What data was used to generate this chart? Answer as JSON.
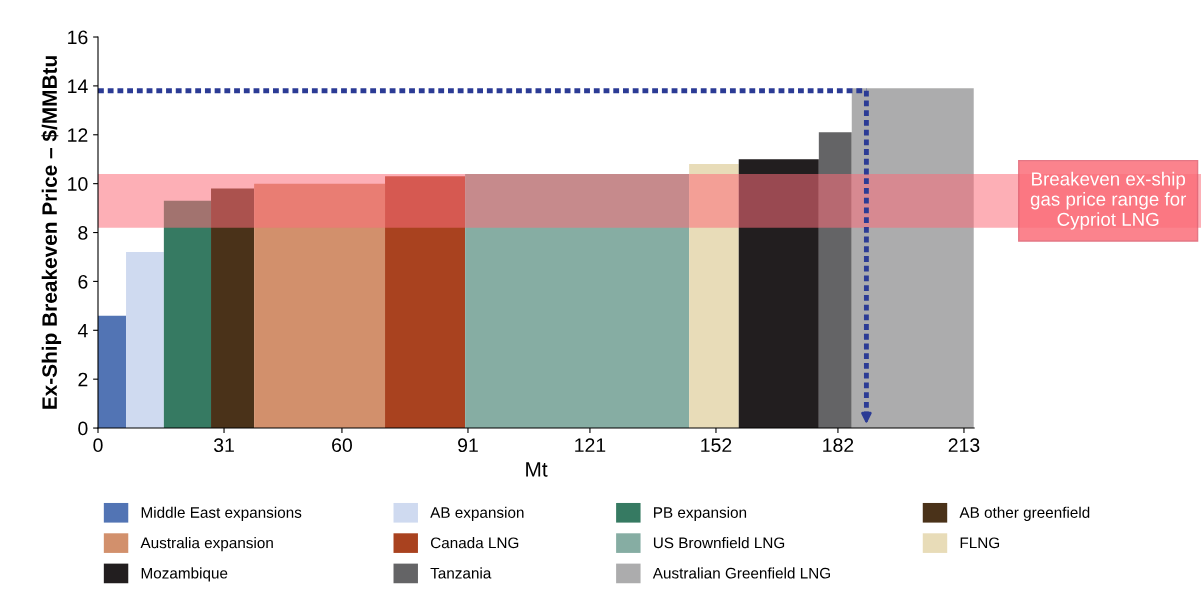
{
  "chart_data": {
    "type": "histogram",
    "xlabel": "Mt",
    "ylabel": "Ex-Ship Breakeven Price – $/MMBtu",
    "bins": [
      0,
      6.9,
      16.2,
      27.8,
      38.4,
      70.6,
      90.3,
      145.4,
      157.6,
      177.3,
      185.4,
      215.4
    ],
    "series": [
      {
        "name": "Middle East expansions",
        "color": "#5274b4",
        "values": [
          4.6,
          null,
          null,
          null,
          null,
          null,
          null,
          null,
          null,
          null,
          null
        ]
      },
      {
        "name": "AB expansion",
        "color": "#cfdaf0",
        "values": [
          null,
          7.2,
          null,
          null,
          null,
          null,
          null,
          null,
          null,
          null,
          null
        ]
      },
      {
        "name": "PB expansion",
        "color": "#367a62",
        "values": [
          null,
          null,
          9.3,
          null,
          null,
          null,
          null,
          null,
          null,
          null,
          null
        ]
      },
      {
        "name": "AB other greenfield",
        "color": "#4a3219",
        "values": [
          null,
          null,
          null,
          9.8,
          null,
          null,
          null,
          null,
          null,
          null,
          null
        ]
      },
      {
        "name": "Australia expansion",
        "color": "#d2906c",
        "values": [
          null,
          null,
          null,
          null,
          10.0,
          null,
          null,
          null,
          null,
          null,
          null
        ]
      },
      {
        "name": "Canada LNG",
        "color": "#a9421f",
        "values": [
          null,
          null,
          null,
          null,
          null,
          10.3,
          null,
          null,
          null,
          null,
          null
        ]
      },
      {
        "name": "US Brownfield LNG",
        "color": "#86ada3",
        "values": [
          null,
          null,
          null,
          null,
          null,
          null,
          10.4,
          null,
          null,
          null,
          null
        ]
      },
      {
        "name": "FLNG",
        "color": "#e8dcb8",
        "values": [
          null,
          null,
          null,
          null,
          null,
          null,
          null,
          10.8,
          null,
          null,
          null
        ]
      },
      {
        "name": "Mozambique",
        "color": "#221e1f",
        "values": [
          null,
          null,
          null,
          null,
          null,
          null,
          null,
          null,
          11.0,
          null,
          null
        ]
      },
      {
        "name": "Tanzania",
        "color": "#646466",
        "values": [
          null,
          null,
          null,
          null,
          null,
          null,
          null,
          null,
          null,
          12.1,
          null
        ]
      },
      {
        "name": "Australian Greenfield LNG",
        "color": "#acacad",
        "values": [
          null,
          null,
          null,
          null,
          null,
          null,
          null,
          null,
          null,
          null,
          13.9
        ]
      }
    ],
    "xlim": [
      0,
      215.5
    ],
    "xticks": [
      0,
      31,
      60,
      91,
      121,
      152,
      182,
      213
    ],
    "ylim": [
      0,
      16
    ],
    "yticks": [
      0,
      2,
      4,
      6,
      8,
      10,
      12,
      14,
      16
    ],
    "bands": [
      {
        "axis": "y",
        "from": 8.2,
        "to": 10.4,
        "label": "Breakeven ex-ship gas price range for Cypriot LNG",
        "color": "#fb6e7a"
      }
    ],
    "ref_lines": [
      {
        "axis": "y",
        "value": 13.8,
        "color": "#2b3b95",
        "line_style": "dotted"
      },
      {
        "axis": "x",
        "value": 189,
        "color": "#2b3b95",
        "line_style": "dotted"
      }
    ],
    "legend": "bottom",
    "grid": false
  }
}
